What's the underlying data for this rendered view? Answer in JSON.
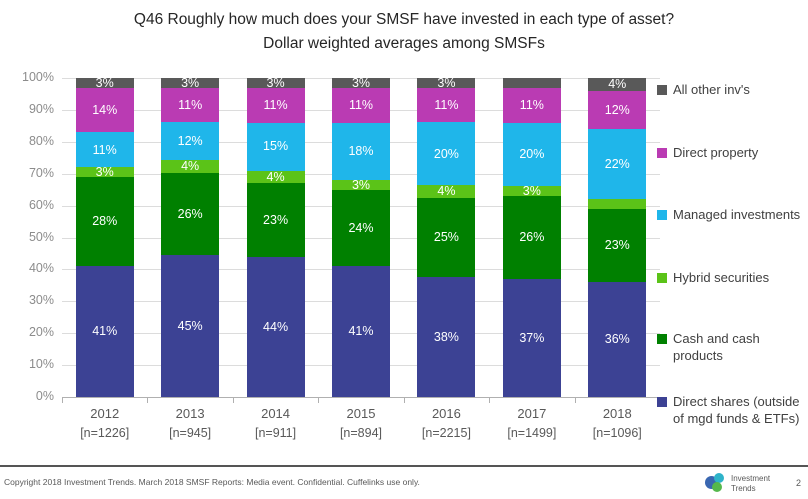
{
  "chart_data": {
    "type": "bar",
    "stacked": true,
    "title": "Q46 Roughly how much does your SMSF have invested in each type of asset?",
    "subtitle": "Dollar weighted averages among SMSFs",
    "categories": [
      "2012",
      "2013",
      "2014",
      "2015",
      "2016",
      "2017",
      "2018"
    ],
    "category_sublabels": [
      "[n=1226]",
      "[n=945]",
      "[n=911]",
      "[n=894]",
      "[n=2215]",
      "[n=1499]",
      "[n=1096]"
    ],
    "ylim": [
      0,
      100
    ],
    "ytick_labels": [
      "0%",
      "10%",
      "20%",
      "30%",
      "40%",
      "50%",
      "60%",
      "70%",
      "80%",
      "90%",
      "100%"
    ],
    "grid": true,
    "legend_position": "right",
    "series": [
      {
        "name": "Direct shares (outside of mgd funds & ETFs)",
        "color": "#3c4294",
        "values": [
          41,
          45,
          44,
          41,
          38,
          37,
          36
        ],
        "labels": [
          "41%",
          "45%",
          "44%",
          "41%",
          "38%",
          "37%",
          "36%"
        ]
      },
      {
        "name": "Cash and cash products",
        "color": "#008000",
        "values": [
          28,
          26,
          23,
          24,
          25,
          26,
          23
        ],
        "labels": [
          "28%",
          "26%",
          "23%",
          "24%",
          "25%",
          "26%",
          "23%"
        ]
      },
      {
        "name": "Hybrid securities",
        "color": "#5bc318",
        "values": [
          3,
          4,
          4,
          3,
          4,
          3,
          3
        ],
        "labels": [
          "3%",
          "4%",
          "4%",
          "3%",
          "4%",
          "3%",
          ""
        ]
      },
      {
        "name": "Managed investments",
        "color": "#1fb6ea",
        "values": [
          11,
          12,
          15,
          18,
          20,
          20,
          22
        ],
        "labels": [
          "11%",
          "12%",
          "15%",
          "18%",
          "20%",
          "20%",
          "22%"
        ]
      },
      {
        "name": "Direct property",
        "color": "#ba3bb3",
        "values": [
          14,
          11,
          11,
          11,
          11,
          11,
          12
        ],
        "labels": [
          "14%",
          "11%",
          "11%",
          "11%",
          "11%",
          "11%",
          "12%"
        ]
      },
      {
        "name": "All other inv's",
        "color": "#595959",
        "values": [
          3,
          3,
          3,
          3,
          3,
          3,
          4
        ],
        "labels": [
          "3%",
          "3%",
          "3%",
          "3%",
          "3%",
          "",
          "4%"
        ]
      }
    ]
  },
  "footer": {
    "copyright": "Copyright 2018 Investment Trends. March 2018 SMSF Reports: Media event. Confidential. Cuffelinks use only.",
    "logo_line1": "Investment",
    "logo_line2": "Trends",
    "page_number": "2"
  }
}
